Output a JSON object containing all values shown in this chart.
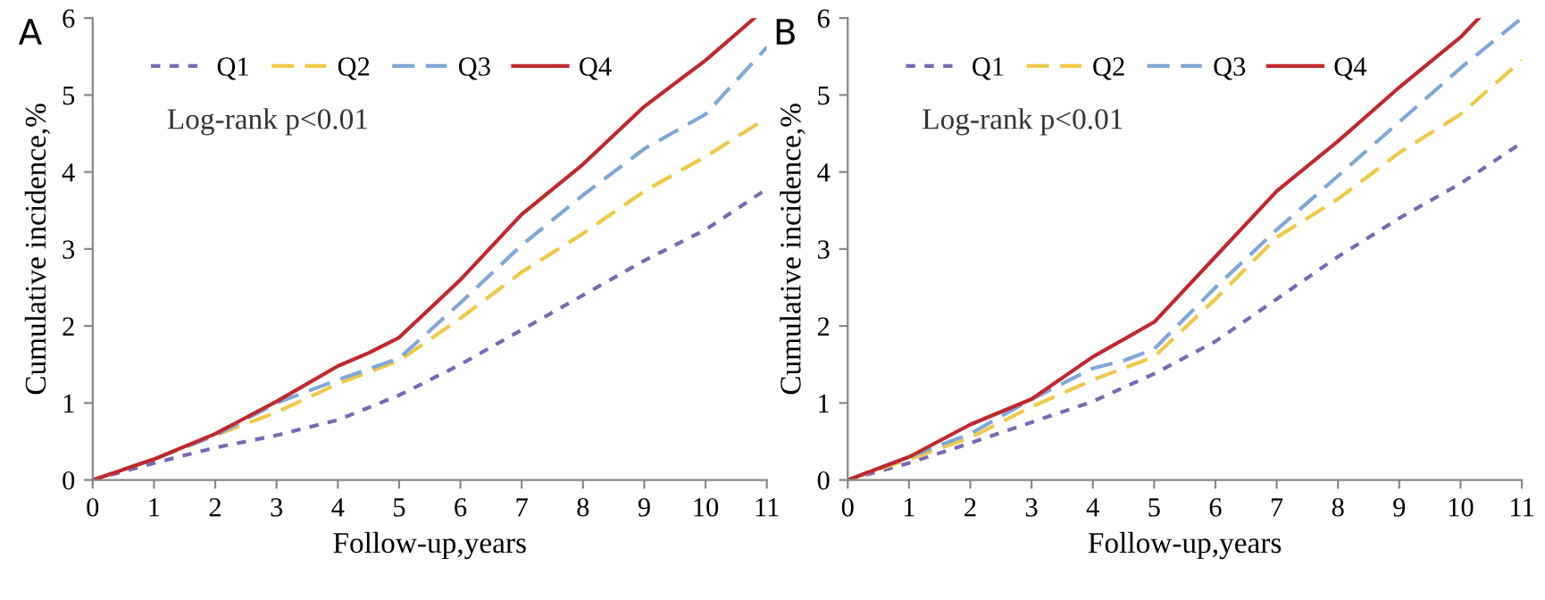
{
  "chart_data": [
    {
      "type": "line",
      "title": "A",
      "xlabel": "Follow-up,years",
      "ylabel": "Cumulative incidence,%",
      "xlim": [
        0,
        11
      ],
      "ylim": [
        0,
        6
      ],
      "xticks": [
        0,
        1,
        2,
        3,
        4,
        5,
        6,
        7,
        8,
        9,
        10,
        11
      ],
      "yticks": [
        0,
        1,
        2,
        3,
        4,
        5,
        6
      ],
      "grid": false,
      "legend": "top left",
      "annotations": [
        "Log-rank p<0.01"
      ],
      "series": [
        {
          "name": "Q1",
          "color": "#7b68b5",
          "line_style": "dotted",
          "x": [
            0,
            1,
            2,
            3,
            4,
            5,
            6,
            7,
            8,
            9,
            10,
            11
          ],
          "values": [
            0,
            0.22,
            0.42,
            0.58,
            0.78,
            1.1,
            1.5,
            1.95,
            2.4,
            2.85,
            3.25,
            3.78
          ]
        },
        {
          "name": "Q2",
          "color": "#f0c84a",
          "line_style": "dashed",
          "x": [
            0,
            1,
            2,
            3,
            4,
            5,
            6,
            7,
            8,
            9,
            10,
            11
          ],
          "values": [
            0,
            0.27,
            0.58,
            0.88,
            1.25,
            1.55,
            2.1,
            2.7,
            3.2,
            3.75,
            4.2,
            4.7
          ]
        },
        {
          "name": "Q3",
          "color": "#7fa8d8",
          "line_style": "dashed",
          "x": [
            0,
            1,
            2,
            3,
            4,
            5,
            6,
            7,
            8,
            9,
            10,
            11
          ],
          "values": [
            0,
            0.27,
            0.58,
            1.0,
            1.3,
            1.58,
            2.3,
            3.05,
            3.7,
            4.3,
            4.75,
            5.62
          ]
        },
        {
          "name": "Q4",
          "color": "#c0282d",
          "line_style": "solid",
          "x": [
            0,
            1,
            2,
            3,
            4,
            4.5,
            5,
            6,
            7,
            8,
            9,
            10,
            10.8
          ],
          "values": [
            0,
            0.27,
            0.6,
            1.02,
            1.48,
            1.65,
            1.85,
            2.6,
            3.45,
            4.1,
            4.85,
            5.45,
            6.0
          ]
        }
      ]
    },
    {
      "type": "line",
      "title": "B",
      "xlabel": "Follow-up,years",
      "ylabel": "Cumulative incidence,%",
      "xlim": [
        0,
        11
      ],
      "ylim": [
        0,
        6
      ],
      "xticks": [
        0,
        1,
        2,
        3,
        4,
        5,
        6,
        7,
        8,
        9,
        10,
        11
      ],
      "yticks": [
        0,
        1,
        2,
        3,
        4,
        5,
        6
      ],
      "grid": false,
      "legend": "top left",
      "annotations": [
        "Log-rank p<0.01"
      ],
      "series": [
        {
          "name": "Q1",
          "color": "#7b68b5",
          "line_style": "dotted",
          "x": [
            0,
            1,
            2,
            3,
            4,
            5,
            6,
            7,
            8,
            9,
            10,
            11
          ],
          "values": [
            0,
            0.22,
            0.48,
            0.75,
            1.02,
            1.38,
            1.8,
            2.35,
            2.9,
            3.4,
            3.85,
            4.38
          ]
        },
        {
          "name": "Q2",
          "color": "#f0c84a",
          "line_style": "dashed",
          "x": [
            0,
            1,
            2,
            3,
            4,
            5,
            6,
            7,
            8,
            9,
            10,
            11
          ],
          "values": [
            0,
            0.27,
            0.55,
            0.95,
            1.3,
            1.6,
            2.35,
            3.15,
            3.65,
            4.25,
            4.75,
            5.45
          ]
        },
        {
          "name": "Q3",
          "color": "#7fa8d8",
          "line_style": "dashed",
          "x": [
            0,
            1,
            2,
            3,
            4,
            4.5,
            5,
            6,
            7,
            8,
            9,
            10,
            11
          ],
          "values": [
            0,
            0.3,
            0.6,
            1.05,
            1.45,
            1.55,
            1.7,
            2.5,
            3.25,
            3.95,
            4.65,
            5.35,
            6.0
          ]
        },
        {
          "name": "Q4",
          "color": "#c0282d",
          "line_style": "solid",
          "x": [
            0,
            1,
            2,
            3,
            4,
            5,
            6,
            7,
            8,
            9,
            10,
            10.3
          ],
          "values": [
            0,
            0.3,
            0.72,
            1.05,
            1.6,
            2.05,
            2.9,
            3.75,
            4.4,
            5.1,
            5.75,
            6.0
          ]
        }
      ]
    }
  ]
}
